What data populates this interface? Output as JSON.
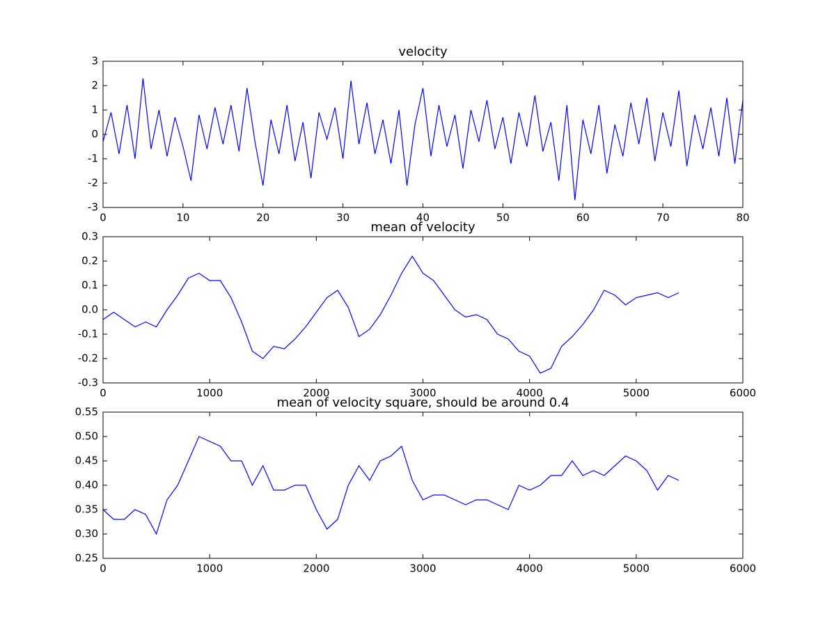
{
  "chart_data": [
    {
      "type": "line",
      "title": "velocity",
      "x": [
        0,
        1,
        2,
        3,
        4,
        5,
        6,
        7,
        8,
        9,
        10,
        11,
        12,
        13,
        14,
        15,
        16,
        17,
        18,
        19,
        20,
        21,
        22,
        23,
        24,
        25,
        26,
        27,
        28,
        29,
        30,
        31,
        32,
        33,
        34,
        35,
        36,
        37,
        38,
        39,
        40,
        41,
        42,
        43,
        44,
        45,
        46,
        47,
        48,
        49,
        50,
        51,
        52,
        53,
        54,
        55,
        56,
        57,
        58,
        59,
        60,
        61,
        62,
        63,
        64,
        65,
        66,
        67,
        68,
        69,
        70,
        71,
        72,
        73,
        74,
        75,
        76,
        77,
        78,
        79,
        80
      ],
      "values": [
        -0.3,
        0.9,
        -0.8,
        1.2,
        -1.0,
        2.3,
        -0.6,
        1.0,
        -0.9,
        0.7,
        -0.5,
        -1.9,
        0.8,
        -0.6,
        1.1,
        -0.4,
        1.2,
        -0.7,
        1.9,
        -0.3,
        -2.1,
        0.6,
        -0.8,
        1.2,
        -1.1,
        0.5,
        -1.8,
        0.9,
        -0.2,
        1.1,
        -1.0,
        2.2,
        -0.4,
        1.3,
        -0.8,
        0.6,
        -1.2,
        1.0,
        -2.1,
        0.4,
        1.9,
        -0.9,
        1.2,
        -0.5,
        0.8,
        -1.4,
        1.0,
        -0.3,
        1.4,
        -0.6,
        0.7,
        -1.2,
        0.9,
        -0.5,
        1.6,
        -0.7,
        0.5,
        -1.9,
        1.2,
        -2.7,
        0.6,
        -0.8,
        1.2,
        -1.6,
        0.4,
        -0.9,
        1.3,
        -0.4,
        1.5,
        -1.1,
        0.9,
        -0.5,
        1.8,
        -1.3,
        0.8,
        -0.6,
        1.1,
        -0.9,
        1.5,
        -1.2,
        1.4
      ],
      "color": "#0000ff",
      "xlim": [
        0,
        80
      ],
      "xticks": [
        0,
        10,
        20,
        30,
        40,
        50,
        60,
        70,
        80
      ],
      "ylim": [
        -3,
        3
      ],
      "yticks": [
        -3,
        -2,
        -1,
        0,
        1,
        2,
        3
      ],
      "grid": false
    },
    {
      "type": "line",
      "title": "mean of velocity",
      "x": [
        0,
        100,
        200,
        300,
        400,
        500,
        600,
        700,
        800,
        900,
        1000,
        1100,
        1200,
        1300,
        1400,
        1500,
        1600,
        1700,
        1800,
        1900,
        2000,
        2100,
        2200,
        2300,
        2400,
        2500,
        2600,
        2700,
        2800,
        2900,
        3000,
        3100,
        3200,
        3300,
        3400,
        3500,
        3600,
        3700,
        3800,
        3900,
        4000,
        4100,
        4200,
        4300,
        4400,
        4500,
        4600,
        4700,
        4800,
        4900,
        5000,
        5100,
        5200,
        5300,
        5400
      ],
      "values": [
        -0.04,
        -0.01,
        -0.04,
        -0.07,
        -0.05,
        -0.07,
        0.0,
        0.06,
        0.13,
        0.15,
        0.12,
        0.12,
        0.05,
        -0.05,
        -0.17,
        -0.2,
        -0.15,
        -0.16,
        -0.12,
        -0.07,
        -0.01,
        0.05,
        0.08,
        0.01,
        -0.11,
        -0.08,
        -0.02,
        0.06,
        0.15,
        0.22,
        0.15,
        0.12,
        0.06,
        0.0,
        -0.03,
        -0.02,
        -0.04,
        -0.1,
        -0.12,
        -0.17,
        -0.19,
        -0.26,
        -0.24,
        -0.15,
        -0.11,
        -0.06,
        0.0,
        0.08,
        0.06,
        0.02,
        0.05,
        0.06,
        0.07,
        0.05,
        0.07
      ],
      "color": "#0000ff",
      "xlim": [
        0,
        6000
      ],
      "xticks": [
        0,
        1000,
        2000,
        3000,
        4000,
        5000,
        6000
      ],
      "ylim": [
        -0.3,
        0.3
      ],
      "yticks": [
        -0.3,
        -0.2,
        -0.1,
        {
          "value": 0,
          "label": "0.0"
        },
        0.1,
        0.2,
        0.3
      ],
      "grid": false
    },
    {
      "type": "line",
      "title": "mean of velocity square, should be around 0.4",
      "x": [
        0,
        100,
        200,
        300,
        400,
        500,
        600,
        700,
        800,
        900,
        1000,
        1100,
        1200,
        1300,
        1400,
        1500,
        1600,
        1700,
        1800,
        1900,
        2000,
        2100,
        2200,
        2300,
        2400,
        2500,
        2600,
        2700,
        2800,
        2900,
        3000,
        3100,
        3200,
        3300,
        3400,
        3500,
        3600,
        3700,
        3800,
        3900,
        4000,
        4100,
        4200,
        4300,
        4400,
        4500,
        4600,
        4700,
        4800,
        4900,
        5000,
        5100,
        5200,
        5300,
        5400
      ],
      "values": [
        0.35,
        0.33,
        0.33,
        0.35,
        0.34,
        0.3,
        0.37,
        0.4,
        0.45,
        0.5,
        0.49,
        0.48,
        0.45,
        0.45,
        0.4,
        0.44,
        0.39,
        0.39,
        0.4,
        0.4,
        0.35,
        0.31,
        0.33,
        0.4,
        0.44,
        0.41,
        0.45,
        0.46,
        0.48,
        0.41,
        0.37,
        0.38,
        0.38,
        0.37,
        0.36,
        0.37,
        0.37,
        0.36,
        0.35,
        0.4,
        0.39,
        0.4,
        0.42,
        0.42,
        0.45,
        0.42,
        0.43,
        0.42,
        0.44,
        0.46,
        0.45,
        0.43,
        0.39,
        0.42,
        0.41
      ],
      "color": "#0000ff",
      "xlim": [
        0,
        6000
      ],
      "xticks": [
        0,
        1000,
        2000,
        3000,
        4000,
        5000,
        6000
      ],
      "ylim": [
        0.25,
        0.55
      ],
      "yticks": [
        0.25,
        {
          "value": 0.3,
          "label": "0.30"
        },
        0.35,
        {
          "value": 0.4,
          "label": "0.40"
        },
        0.45,
        {
          "value": 0.5,
          "label": "0.50"
        },
        0.55
      ],
      "grid": false
    }
  ]
}
